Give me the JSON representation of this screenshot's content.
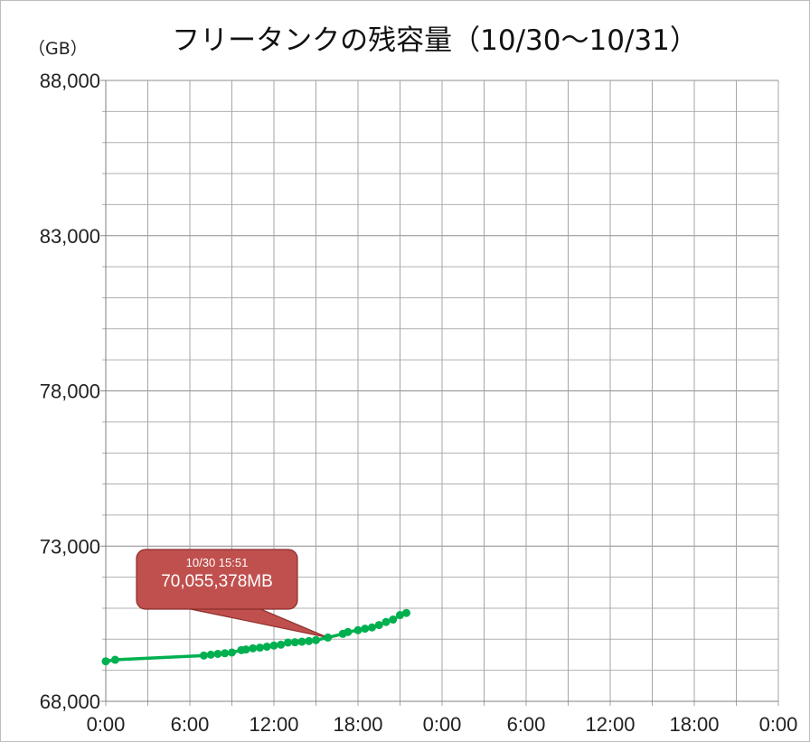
{
  "chart_data": {
    "type": "line",
    "title": "フリータンクの残容量（10/30～10/31）",
    "ylabel": "（GB）",
    "ylim": [
      68000,
      88000
    ],
    "y_major_ticks": [
      "68,000",
      "73,000",
      "78,000",
      "83,000",
      "88,000"
    ],
    "y_minor_step": 1000,
    "xlim_hours": [
      0,
      48
    ],
    "x_tick_labels": [
      "0:00",
      "6:00",
      "12:00",
      "18:00",
      "0:00",
      "6:00",
      "12:00",
      "18:00",
      "0:00"
    ],
    "grid": true,
    "series": [
      {
        "color": "#00b050",
        "x_hours": [
          0,
          0.67,
          7,
          7.5,
          8,
          8.5,
          9,
          9.67,
          10,
          10.5,
          11,
          11.5,
          12,
          12.5,
          13,
          13.5,
          14,
          14.5,
          15,
          15.85,
          16.92,
          17.28,
          18,
          18.5,
          19,
          19.5,
          20,
          20.5,
          21,
          21.45
        ],
        "values": [
          69289,
          69338,
          69474,
          69503,
          69530,
          69550,
          69572,
          69650,
          69670,
          69708,
          69730,
          69760,
          69796,
          69825,
          69893,
          69903,
          69920,
          69940,
          69971,
          70055,
          70175,
          70234,
          70292,
          70340,
          70380,
          70458,
          70555,
          70633,
          70779,
          70847
        ]
      }
    ],
    "annotation": {
      "date": "10/30 15:51",
      "value": "70,055,378MB",
      "x_hours": 15.85,
      "y": 70055,
      "color": "#c0504d"
    }
  }
}
